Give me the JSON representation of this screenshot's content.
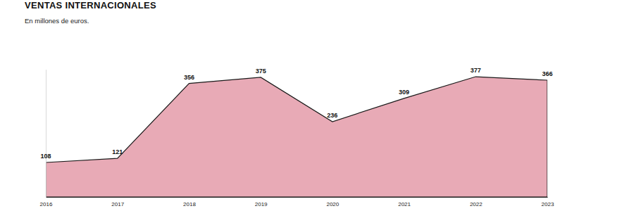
{
  "chart_data": {
    "type": "area",
    "title": "VENTAS INTERNACIONALES",
    "subtitle": "En millones de euros.",
    "x": [
      2016,
      2017,
      2018,
      2019,
      2020,
      2021,
      2022,
      2023
    ],
    "values": [
      108,
      121,
      356,
      375,
      236,
      309,
      377,
      366
    ],
    "color": "#e8aab6",
    "xlim": [
      2016,
      2023
    ],
    "xticks": [
      2016,
      2017,
      2018,
      2019,
      2020,
      2021,
      2022,
      2023
    ],
    "ylim": [
      0,
      400
    ],
    "data_labels": true,
    "tick_labels": "x"
  }
}
